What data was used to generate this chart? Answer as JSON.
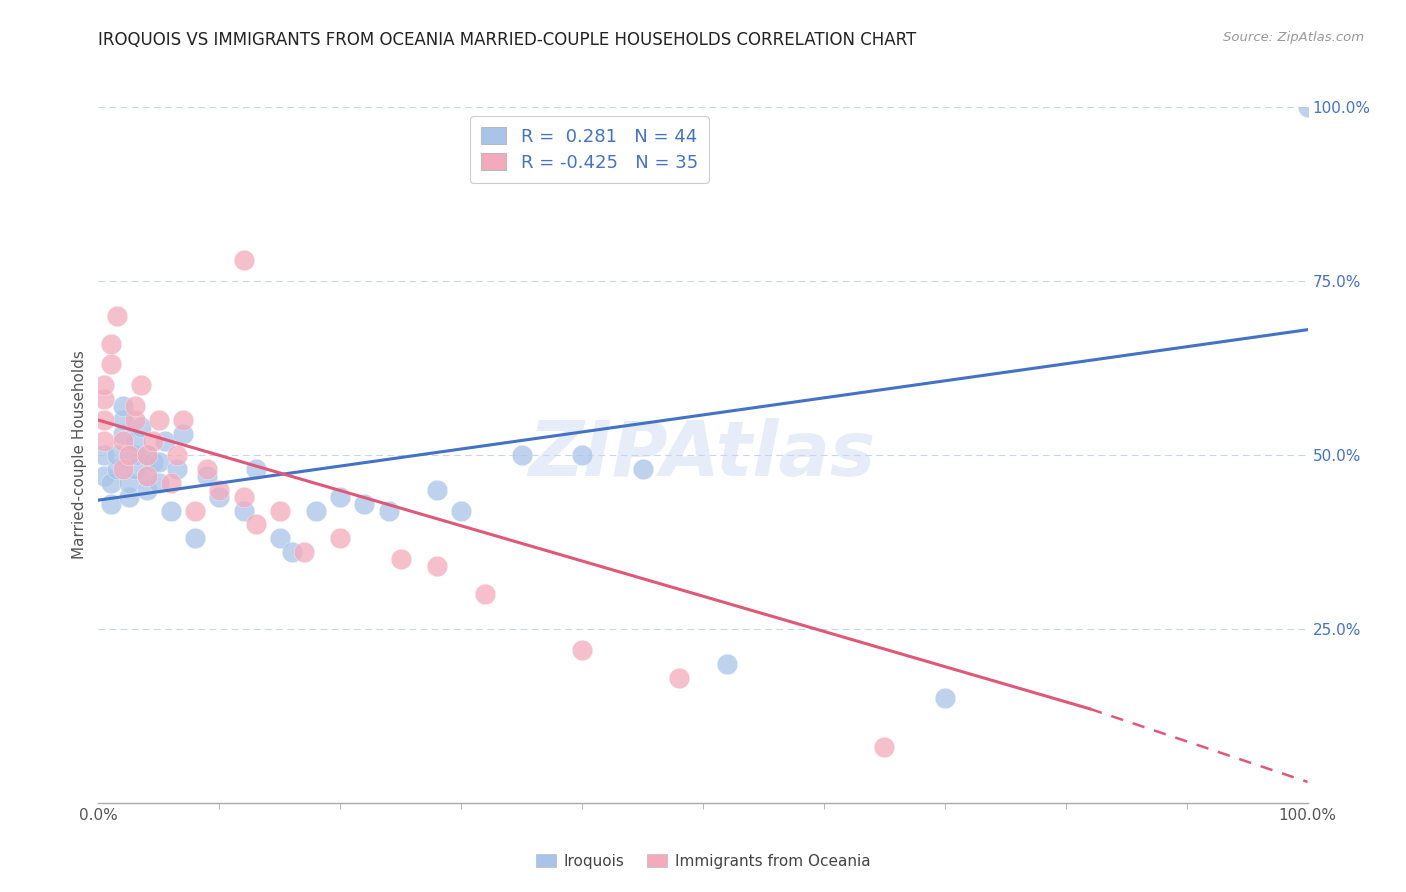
{
  "title": "IROQUOIS VS IMMIGRANTS FROM OCEANIA MARRIED-COUPLE HOUSEHOLDS CORRELATION CHART",
  "source": "Source: ZipAtlas.com",
  "ylabel": "Married-couple Households",
  "legend_blue_r": "0.281",
  "legend_blue_n": "44",
  "legend_pink_r": "-0.425",
  "legend_pink_n": "35",
  "watermark": "ZIPAtlas",
  "blue_color": "#a8c4e8",
  "pink_color": "#f4aabc",
  "blue_line_color": "#4472c4",
  "pink_line_color": "#e05878",
  "background_color": "#ffffff",
  "grid_color": "#c8d4e8",
  "right_tick_color": "#4472c4",
  "blue_scatter": [
    [
      0.005,
      0.47
    ],
    [
      0.005,
      0.5
    ],
    [
      0.01,
      0.43
    ],
    [
      0.01,
      0.46
    ],
    [
      0.015,
      0.48
    ],
    [
      0.015,
      0.5
    ],
    [
      0.02,
      0.53
    ],
    [
      0.02,
      0.55
    ],
    [
      0.02,
      0.57
    ],
    [
      0.025,
      0.44
    ],
    [
      0.025,
      0.46
    ],
    [
      0.03,
      0.48
    ],
    [
      0.03,
      0.5
    ],
    [
      0.03,
      0.52
    ],
    [
      0.035,
      0.54
    ],
    [
      0.04,
      0.45
    ],
    [
      0.04,
      0.47
    ],
    [
      0.04,
      0.5
    ],
    [
      0.045,
      0.49
    ],
    [
      0.05,
      0.46
    ],
    [
      0.05,
      0.49
    ],
    [
      0.055,
      0.52
    ],
    [
      0.06,
      0.42
    ],
    [
      0.065,
      0.48
    ],
    [
      0.07,
      0.53
    ],
    [
      0.08,
      0.38
    ],
    [
      0.09,
      0.47
    ],
    [
      0.1,
      0.44
    ],
    [
      0.12,
      0.42
    ],
    [
      0.13,
      0.48
    ],
    [
      0.15,
      0.38
    ],
    [
      0.16,
      0.36
    ],
    [
      0.18,
      0.42
    ],
    [
      0.2,
      0.44
    ],
    [
      0.22,
      0.43
    ],
    [
      0.24,
      0.42
    ],
    [
      0.28,
      0.45
    ],
    [
      0.3,
      0.42
    ],
    [
      0.35,
      0.5
    ],
    [
      0.4,
      0.5
    ],
    [
      0.45,
      0.48
    ],
    [
      0.52,
      0.2
    ],
    [
      0.7,
      0.15
    ],
    [
      1.0,
      1.0
    ]
  ],
  "pink_scatter": [
    [
      0.005,
      0.52
    ],
    [
      0.005,
      0.55
    ],
    [
      0.005,
      0.58
    ],
    [
      0.005,
      0.6
    ],
    [
      0.01,
      0.63
    ],
    [
      0.01,
      0.66
    ],
    [
      0.015,
      0.7
    ],
    [
      0.02,
      0.48
    ],
    [
      0.02,
      0.52
    ],
    [
      0.025,
      0.5
    ],
    [
      0.03,
      0.55
    ],
    [
      0.03,
      0.57
    ],
    [
      0.035,
      0.6
    ],
    [
      0.04,
      0.47
    ],
    [
      0.04,
      0.5
    ],
    [
      0.045,
      0.52
    ],
    [
      0.05,
      0.55
    ],
    [
      0.06,
      0.46
    ],
    [
      0.065,
      0.5
    ],
    [
      0.07,
      0.55
    ],
    [
      0.08,
      0.42
    ],
    [
      0.09,
      0.48
    ],
    [
      0.1,
      0.45
    ],
    [
      0.12,
      0.44
    ],
    [
      0.13,
      0.4
    ],
    [
      0.15,
      0.42
    ],
    [
      0.17,
      0.36
    ],
    [
      0.2,
      0.38
    ],
    [
      0.25,
      0.35
    ],
    [
      0.28,
      0.34
    ],
    [
      0.32,
      0.3
    ],
    [
      0.4,
      0.22
    ],
    [
      0.48,
      0.18
    ],
    [
      0.65,
      0.08
    ],
    [
      0.12,
      0.78
    ]
  ],
  "blue_trendline": [
    [
      0.0,
      0.435
    ],
    [
      1.0,
      0.68
    ]
  ],
  "pink_trendline": [
    [
      0.0,
      0.55
    ],
    [
      0.82,
      0.135
    ]
  ],
  "pink_trendline_dashed": [
    [
      0.82,
      0.135
    ],
    [
      1.0,
      0.03
    ]
  ],
  "xlim": [
    0,
    1.0
  ],
  "ylim": [
    0,
    1.0
  ],
  "yticks": [
    0.25,
    0.5,
    0.75,
    1.0
  ],
  "yticklabels": [
    "25.0%",
    "50.0%",
    "75.0%",
    "100.0%"
  ]
}
